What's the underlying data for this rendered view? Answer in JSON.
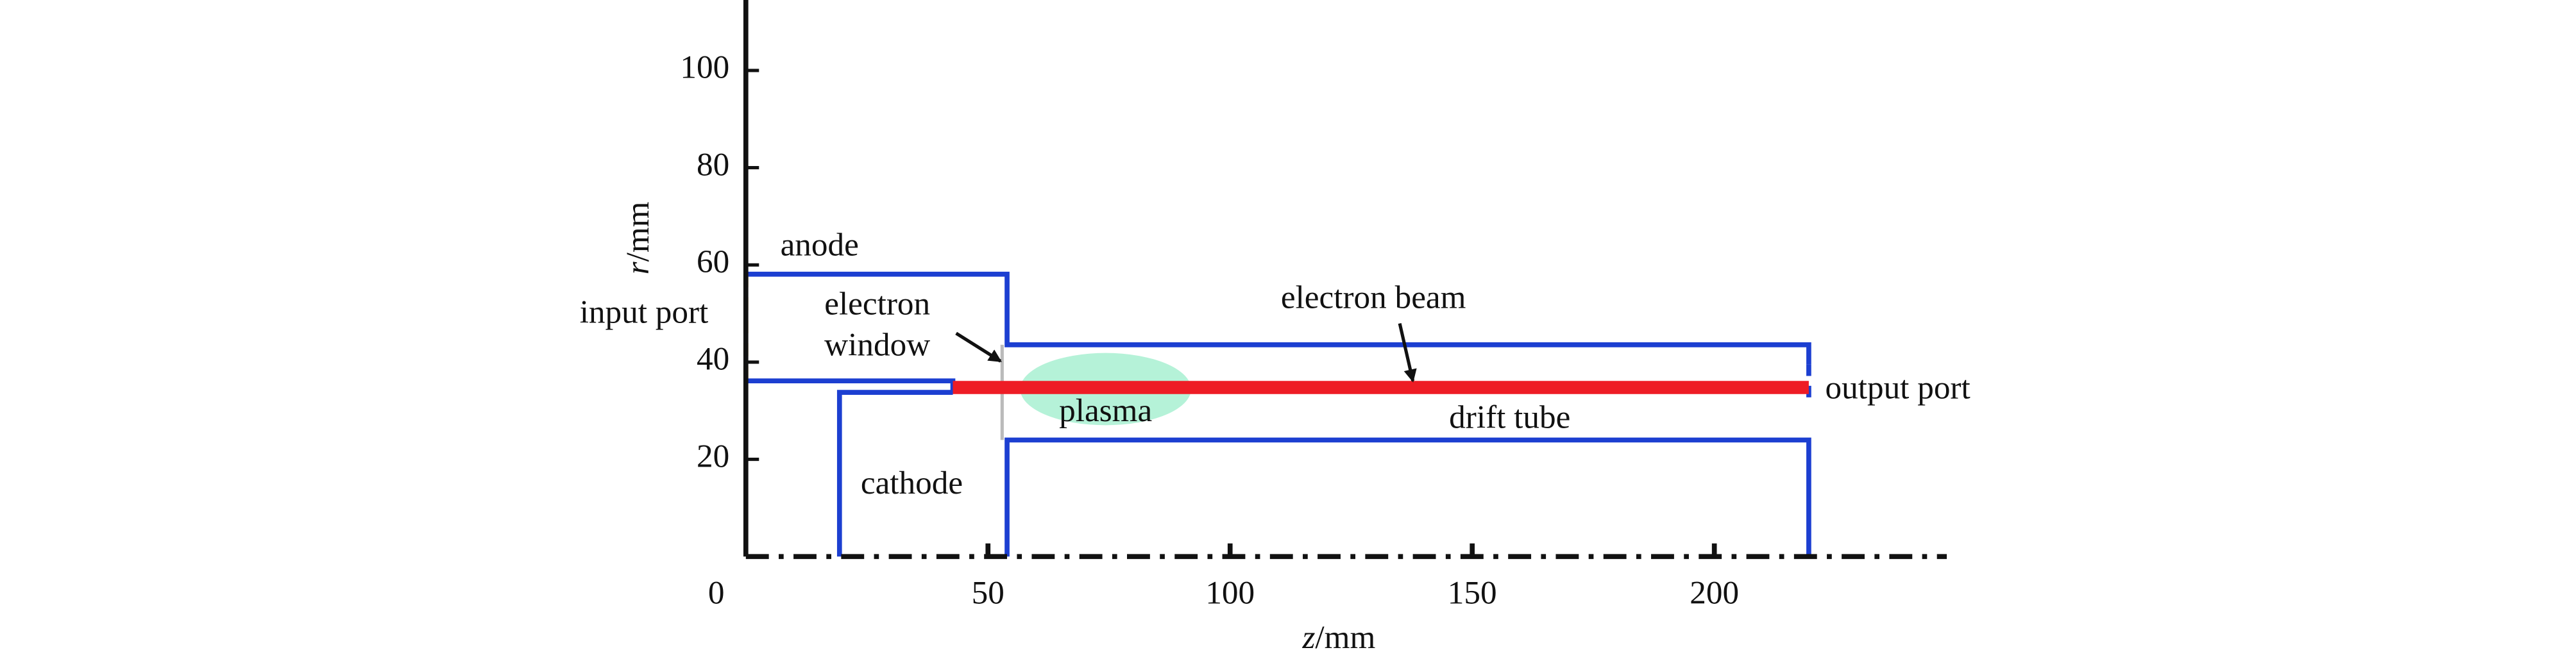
{
  "axes": {
    "x_label": {
      "variable": "z",
      "unit": "/mm"
    },
    "y_label": {
      "variable": "r",
      "unit": "/mm"
    },
    "xlim": [
      0,
      248
    ],
    "ylim": [
      0,
      114.5
    ],
    "xticks": [
      0,
      50,
      100,
      150,
      200
    ],
    "yticks": [
      20,
      40,
      60,
      80,
      100
    ]
  },
  "labels": {
    "anode": "anode",
    "input_port": "input port",
    "electron_window": [
      "electron",
      "window"
    ],
    "electron_beam": "electron beam",
    "plasma": "plasma",
    "drift_tube": "drift tube",
    "output_port": "output port",
    "cathode": "cathode"
  }
}
